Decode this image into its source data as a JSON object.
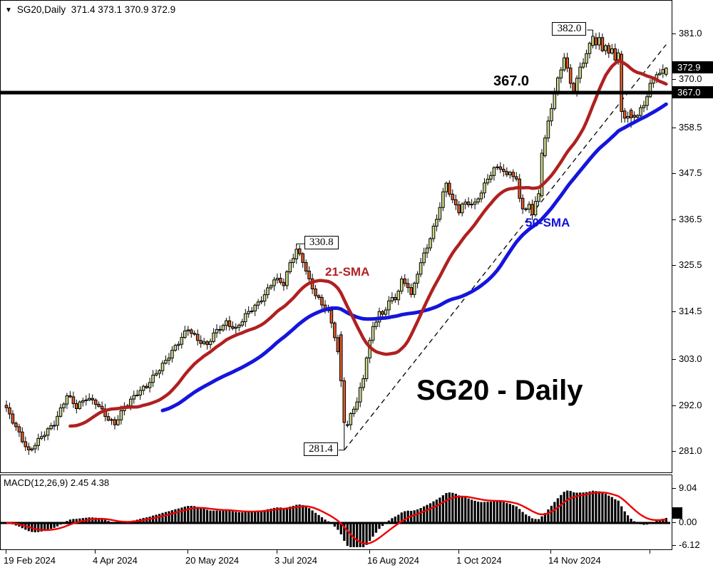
{
  "header": {
    "symbol": "SG20,Daily",
    "ohlc_values": "371.4 373.1 370.9 372.9",
    "open": "371.4",
    "high": "373.1",
    "low": "370.9",
    "close": "372.9"
  },
  "annotations": {
    "big_label": "SG20 - Daily",
    "hline_label": "367.0",
    "sma21_label": "21-SMA",
    "sma50_label": "50-SMA"
  },
  "macd": {
    "header": "MACD(12,26,9) 2.45 4.38",
    "params": "12,26,9",
    "main_value": "2.45",
    "signal_value": "4.38",
    "axis_labels": [
      {
        "text": "9.04",
        "value": 9.04
      },
      {
        "text": "0.00",
        "value": 0
      },
      {
        "text": "-6.12",
        "value": -6.12
      }
    ]
  },
  "chart_data": {
    "type": "candlestick",
    "title": "SG20 - Daily",
    "symbol": "SG20",
    "timeframe": "Daily",
    "num_candles": 208,
    "colors": {
      "up": "#cdd98a",
      "down": "#df5a26",
      "outline": "#000000",
      "sma21": "#b02020",
      "sma50": "#1515dd",
      "macd_histogram": "#000000",
      "macd_signal": "#ee0000",
      "hline": "#000000",
      "label_red": "#b22222",
      "label_blue": "#1111d8"
    },
    "y_axis": {
      "ticks": [
        "381.0",
        "370.0",
        "358.5",
        "347.5",
        "336.5",
        "325.5",
        "314.5",
        "303.0",
        "292.0",
        "281.0"
      ],
      "current_badges": [
        "372.9",
        "367.0"
      ],
      "min": 281.0,
      "max": 381.0
    },
    "x_axis": {
      "ticks": [
        {
          "label": "19 Feb 2024",
          "index": 0
        },
        {
          "label": "4 Apr 2024",
          "index": 28
        },
        {
          "label": "20 May 2024",
          "index": 57
        },
        {
          "label": "3 Jul 2024",
          "index": 85
        },
        {
          "label": "16 Aug 2024",
          "index": 114
        },
        {
          "label": "1 Oct 2024",
          "index": 142
        },
        {
          "label": "14 Nov 2024",
          "index": 171
        },
        {
          "label": "",
          "index": 202
        }
      ]
    },
    "hline": {
      "price": 367.0
    },
    "trendline": {
      "from_index": 106,
      "from_price": 281.4,
      "to_index": 207,
      "to_price": 378.5,
      "style": "dashed"
    },
    "overlays": [
      {
        "name": "21-SMA",
        "type": "sma",
        "period": 21
      },
      {
        "name": "50-SMA",
        "type": "sma",
        "period": 50
      }
    ],
    "callouts": [
      {
        "text": "382.0",
        "index": 184,
        "price": 382.0,
        "side": "left",
        "vdrop": 8
      },
      {
        "text": "330.8",
        "index": 91,
        "price": 330.8,
        "side": "right",
        "vdrop": 3
      },
      {
        "text": "281.4",
        "index": 106,
        "price": 281.4,
        "side": "left",
        "vdrop": 0
      }
    ],
    "close_anchors": [
      [
        0,
        291
      ],
      [
        3,
        287
      ],
      [
        7,
        281
      ],
      [
        10,
        283.5
      ],
      [
        15,
        288
      ],
      [
        19,
        294.5
      ],
      [
        22,
        291.5
      ],
      [
        25,
        294
      ],
      [
        28,
        293
      ],
      [
        32,
        288.5
      ],
      [
        34,
        287.5
      ],
      [
        37,
        292
      ],
      [
        41,
        295
      ],
      [
        44,
        296.5
      ],
      [
        47,
        300
      ],
      [
        51,
        304
      ],
      [
        54,
        307
      ],
      [
        57,
        310.5
      ],
      [
        60,
        308
      ],
      [
        63,
        306.5
      ],
      [
        65,
        309
      ],
      [
        69,
        312
      ],
      [
        72,
        310.5
      ],
      [
        75,
        313.5
      ],
      [
        79,
        316.5
      ],
      [
        82,
        320
      ],
      [
        84,
        322.5
      ],
      [
        87,
        321
      ],
      [
        89,
        326
      ],
      [
        91,
        329.5
      ],
      [
        93,
        327
      ],
      [
        95,
        322
      ],
      [
        97,
        318.5
      ],
      [
        99,
        316
      ],
      [
        101,
        314.5
      ],
      [
        103,
        309
      ],
      [
        104,
        305
      ],
      [
        105,
        298
      ],
      [
        106,
        288
      ],
      [
        107,
        287.5
      ],
      [
        108,
        289.5
      ],
      [
        110,
        293
      ],
      [
        112,
        298.5
      ],
      [
        113,
        304
      ],
      [
        115,
        311
      ],
      [
        117,
        314.5
      ],
      [
        118,
        313.5
      ],
      [
        120,
        317
      ],
      [
        122,
        317.5
      ],
      [
        124,
        322
      ],
      [
        126,
        321
      ],
      [
        127,
        318.5
      ],
      [
        129,
        324
      ],
      [
        131,
        328
      ],
      [
        133,
        332
      ],
      [
        135,
        337
      ],
      [
        137,
        343
      ],
      [
        138,
        345.5
      ],
      [
        140,
        341
      ],
      [
        142,
        338.5
      ],
      [
        143,
        340
      ],
      [
        145,
        340.5
      ],
      [
        147,
        340.5
      ],
      [
        148,
        342
      ],
      [
        150,
        345
      ],
      [
        152,
        347.5
      ],
      [
        153,
        348.5
      ],
      [
        155,
        349
      ],
      [
        157,
        347
      ],
      [
        158,
        348.5
      ],
      [
        160,
        346
      ],
      [
        161,
        342
      ],
      [
        162,
        339.5
      ],
      [
        163,
        338.5
      ],
      [
        164,
        340
      ],
      [
        165,
        338
      ],
      [
        166,
        340.5
      ],
      [
        167,
        342.5
      ],
      [
        168,
        352.5
      ],
      [
        170,
        360
      ],
      [
        172,
        367.5
      ],
      [
        174,
        372.5
      ],
      [
        175,
        375.5
      ],
      [
        177,
        369
      ],
      [
        178,
        367.5
      ],
      [
        180,
        373
      ],
      [
        182,
        376.5
      ],
      [
        184,
        380.5
      ],
      [
        185,
        378.5
      ],
      [
        186,
        379.5
      ],
      [
        187,
        377
      ],
      [
        188,
        378.5
      ],
      [
        189,
        376
      ],
      [
        190,
        377.5
      ],
      [
        191,
        375.5
      ],
      [
        192,
        376.5
      ],
      [
        193,
        362.5
      ],
      [
        194,
        361.5
      ],
      [
        196,
        361
      ],
      [
        198,
        361.5
      ],
      [
        200,
        364
      ],
      [
        202,
        369
      ],
      [
        204,
        372
      ],
      [
        205,
        371.5
      ],
      [
        207,
        372.9
      ]
    ],
    "special_candles": {
      "91": {
        "o": 327.2,
        "h": 330.8,
        "l": 326.0,
        "c": 329.5
      },
      "105": {
        "o": 309.0,
        "h": 309.8,
        "l": 296.5,
        "c": 298.0
      },
      "106": {
        "o": 298.0,
        "h": 298.8,
        "l": 281.4,
        "c": 288.0
      },
      "168": {
        "o": 342.3,
        "h": 353.5,
        "l": 341.8,
        "c": 352.5
      },
      "184": {
        "o": 378.3,
        "h": 382.0,
        "l": 377.6,
        "c": 380.5
      },
      "193": {
        "o": 376.2,
        "h": 377.0,
        "l": 359.8,
        "c": 362.5
      },
      "196": {
        "o": 362.8,
        "h": 363.3,
        "l": 358.6,
        "c": 361.0
      },
      "207": {
        "o": 371.4,
        "h": 373.1,
        "l": 370.9,
        "c": 372.9
      }
    }
  }
}
